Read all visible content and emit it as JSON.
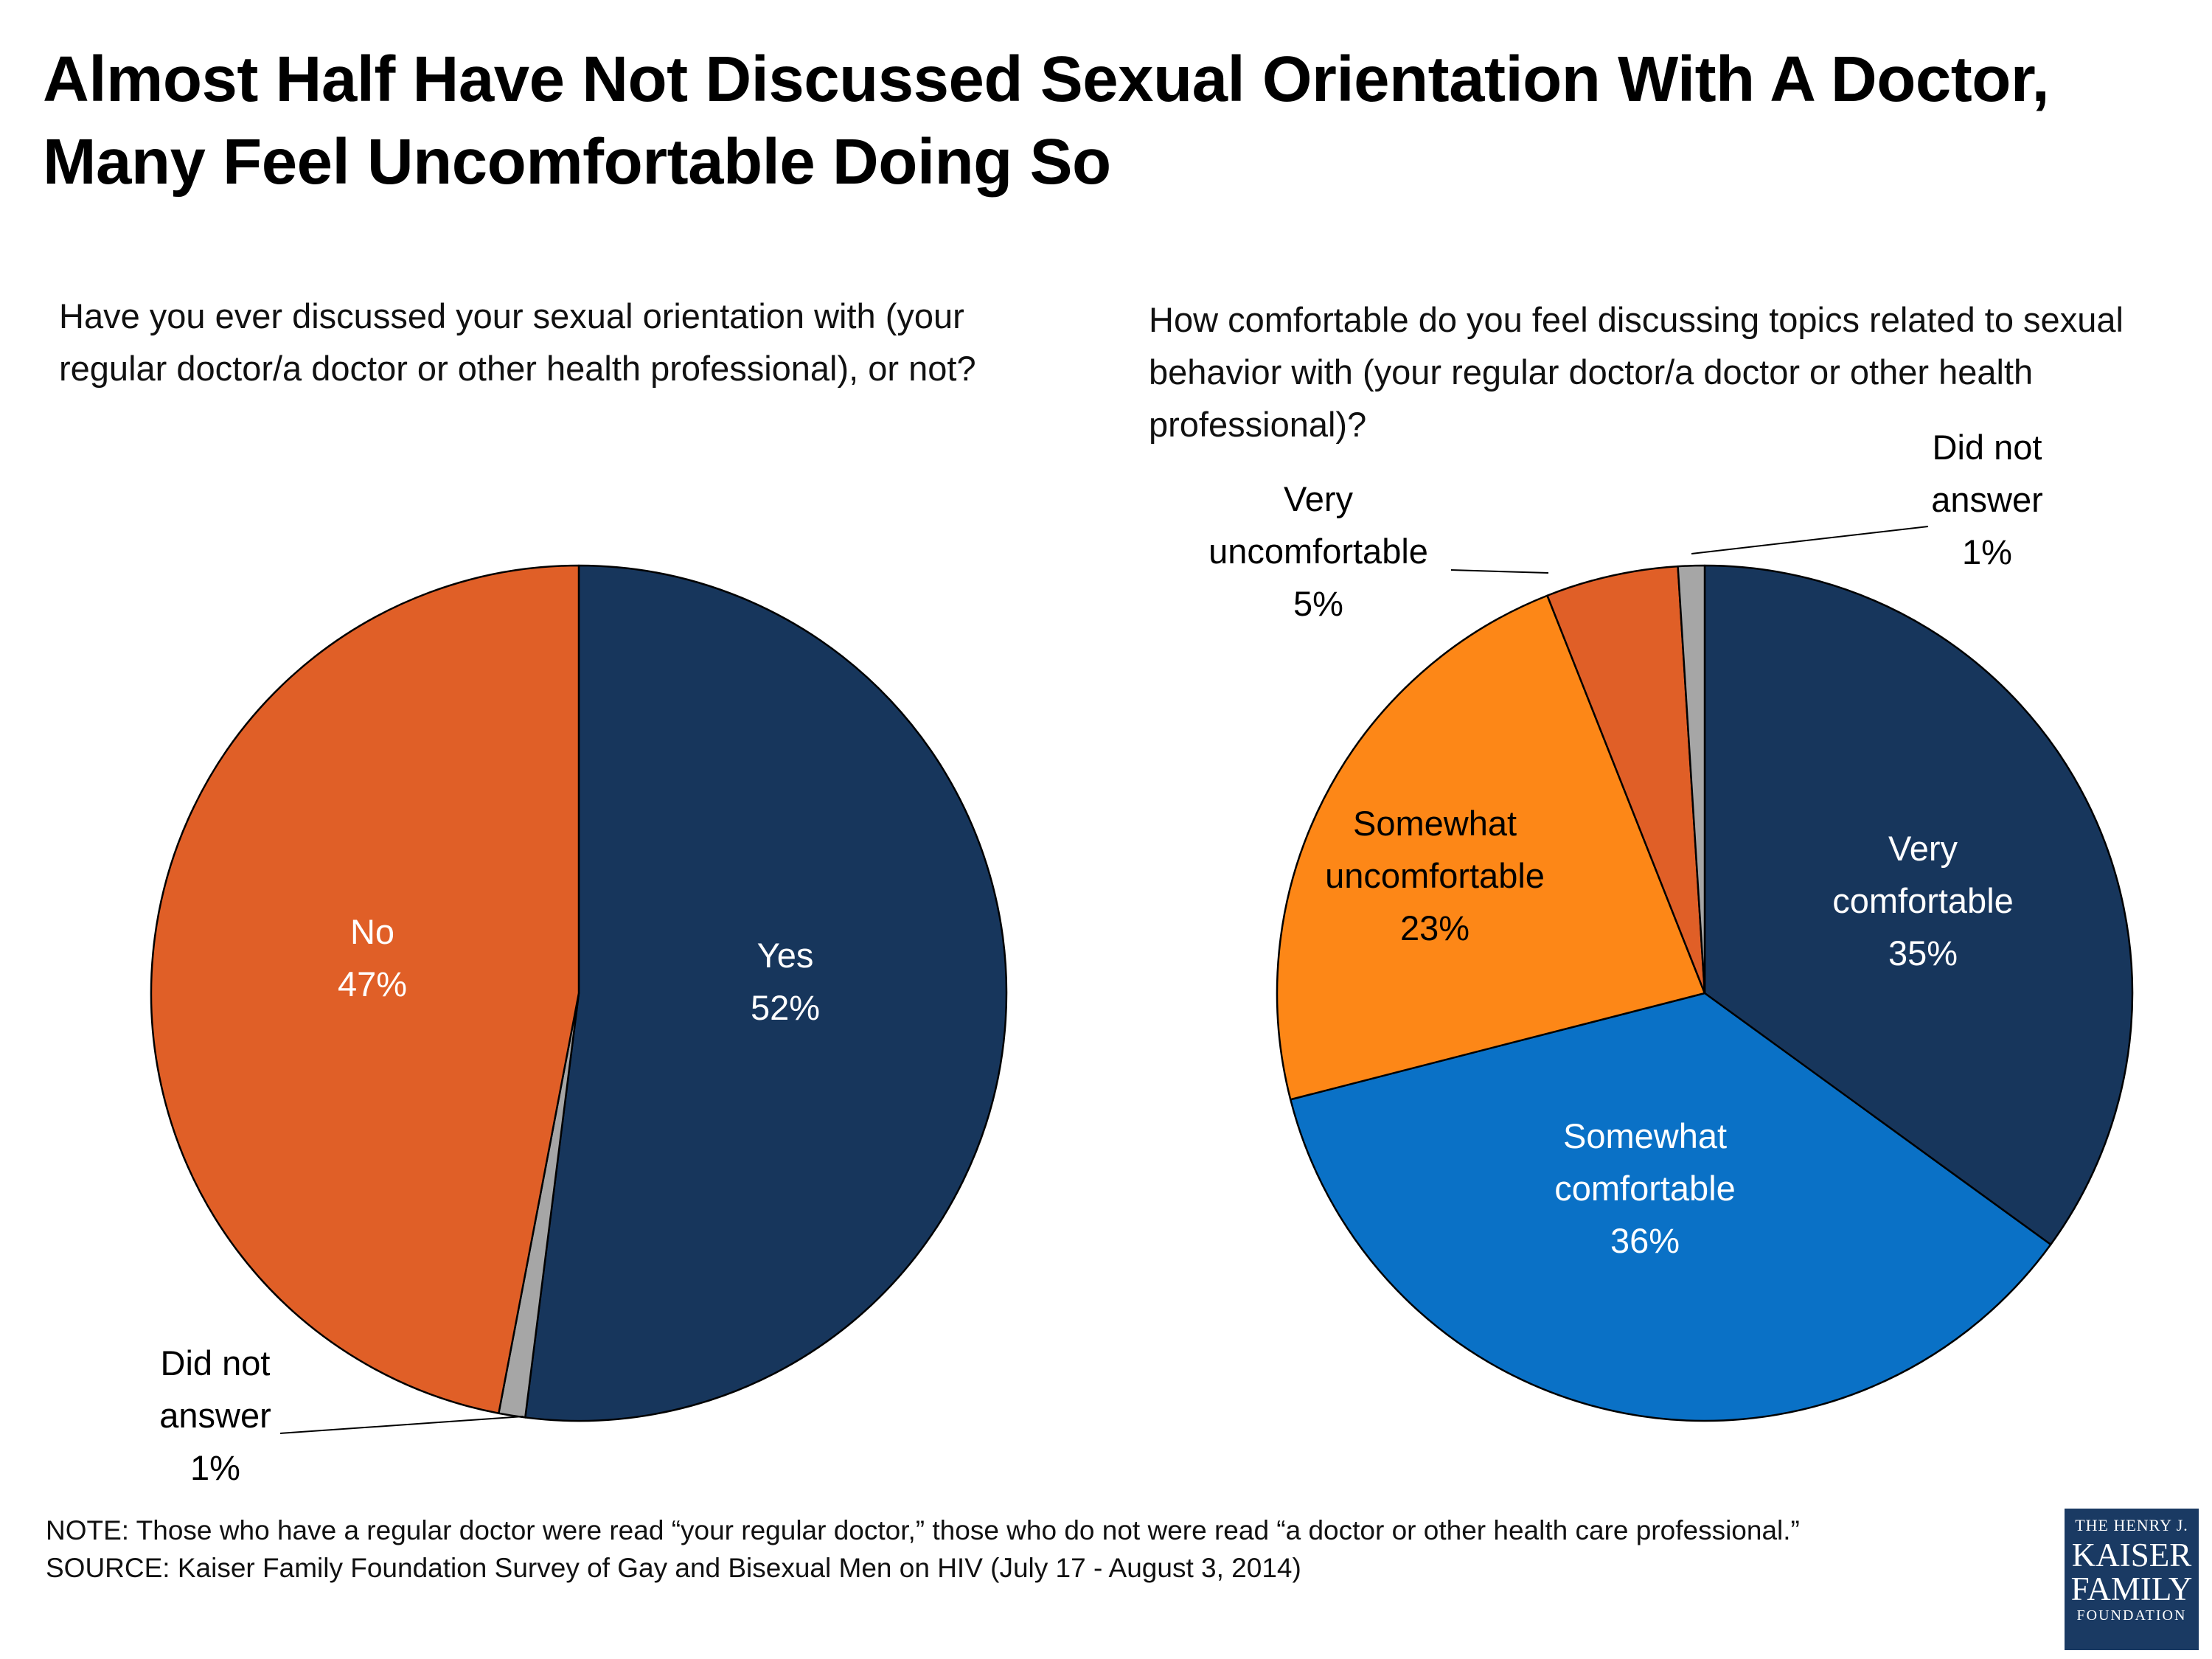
{
  "title": "Almost Half Have Not Discussed Sexual Orientation With A Doctor, Many Feel Uncomfortable Doing So",
  "colors": {
    "navy": "#17365c",
    "orange_red": "#e05f27",
    "gray": "#a6a6a6",
    "orange": "#fd8717",
    "blue": "#0a71c6"
  },
  "chart_data": [
    {
      "type": "pie",
      "title": "Have you ever discussed your sexual orientation with (your regular doctor/a doctor or other health professional), or not?",
      "slices": [
        {
          "name": "Yes",
          "label_lines": [
            "Yes"
          ],
          "value": 52,
          "display": "52%",
          "color": "#17365c"
        },
        {
          "name": "Did not answer",
          "label_lines": [
            "Did not",
            "answer"
          ],
          "value": 1,
          "display": "1%",
          "color": "#a6a6a6"
        },
        {
          "name": "No",
          "label_lines": [
            "No"
          ],
          "value": 47,
          "display": "47%",
          "color": "#e05f27"
        }
      ]
    },
    {
      "type": "pie",
      "title": "How comfortable do you feel discussing topics related to sexual behavior with (your regular doctor/a doctor or other health professional)?",
      "slices": [
        {
          "name": "Very comfortable",
          "label_lines": [
            "Very",
            "comfortable"
          ],
          "value": 35,
          "display": "35%",
          "color": "#17365c"
        },
        {
          "name": "Somewhat comfortable",
          "label_lines": [
            "Somewhat",
            "comfortable"
          ],
          "value": 36,
          "display": "36%",
          "color": "#0a71c6"
        },
        {
          "name": "Somewhat uncomfortable",
          "label_lines": [
            "Somewhat",
            "uncomfortable"
          ],
          "value": 23,
          "display": "23%",
          "color": "#fd8717"
        },
        {
          "name": "Very uncomfortable",
          "label_lines": [
            "Very",
            "uncomfortable"
          ],
          "value": 5,
          "display": "5%",
          "color": "#e05f27"
        },
        {
          "name": "Did not answer",
          "label_lines": [
            "Did not",
            "answer"
          ],
          "value": 1,
          "display": "1%",
          "color": "#a6a6a6"
        }
      ]
    }
  ],
  "footer": {
    "note": "NOTE: Those who have a regular doctor were read “your regular doctor,” those who do not were read “a doctor or other health care professional.”",
    "source": "SOURCE: Kaiser Family Foundation Survey of Gay and Bisexual Men on HIV (July 17 - August 3, 2014)"
  },
  "logo": {
    "line1": "THE HENRY J.",
    "line2": "KAISER",
    "line3": "FAMILY",
    "line4": "FOUNDATION"
  }
}
